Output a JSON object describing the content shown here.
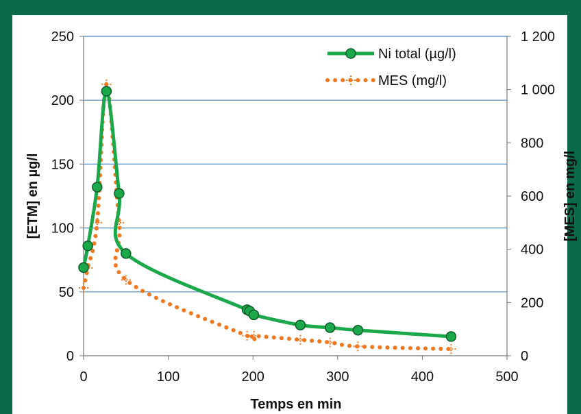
{
  "chart_data": {
    "type": "line",
    "xlabel": "Temps en min",
    "ylabel_left": "[ETM] en µg/l",
    "ylabel_right": "[MES] en mg/l",
    "xlim": [
      0,
      500
    ],
    "ylim_left": [
      0,
      250
    ],
    "ylim_right": [
      0,
      1200
    ],
    "x_ticks": [
      "0",
      "100",
      "200",
      "300",
      "400",
      "500"
    ],
    "y_left_ticks": [
      "0",
      "50",
      "100",
      "150",
      "200",
      "250"
    ],
    "y_right_ticks": [
      "0",
      "200",
      "400",
      "600",
      "800",
      "1 000",
      "1 200"
    ],
    "grid": true,
    "legend_position": "top-right",
    "series": [
      {
        "name": "Ni total (µg/l)",
        "axis": "left",
        "color": "#1aa84a",
        "style": "solid-with-markers",
        "x": [
          0,
          5,
          16,
          27,
          42,
          50,
          193,
          196,
          201,
          256,
          291,
          324,
          434
        ],
        "y": [
          69,
          86,
          132,
          207,
          127,
          80,
          36,
          35,
          32,
          24,
          22,
          20,
          15
        ]
      },
      {
        "name": "MES (mg/l)",
        "axis": "right",
        "color": "#f07820",
        "style": "dotted-with-markers",
        "x": [
          0,
          5,
          16,
          27,
          42,
          50,
          193,
          201,
          256,
          291,
          324,
          434
        ],
        "y": [
          255,
          330,
          500,
          1020,
          500,
          285,
          75,
          75,
          60,
          50,
          35,
          25
        ]
      }
    ]
  }
}
